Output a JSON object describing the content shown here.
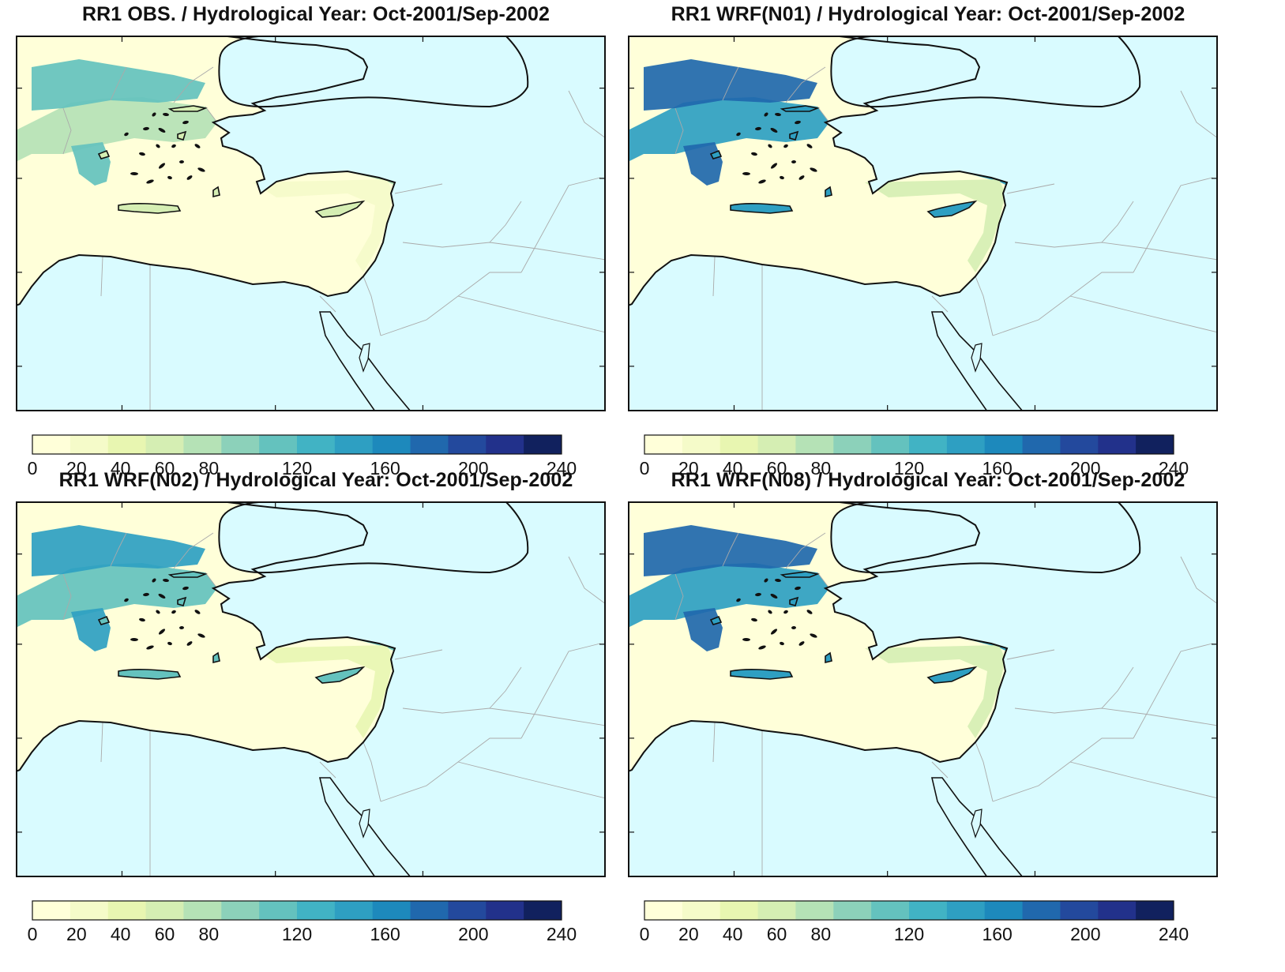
{
  "colorbar": {
    "colors": [
      "#ffffd9",
      "#f5fbc9",
      "#e8f6b1",
      "#d5eeb3",
      "#b5e2b6",
      "#8cd1ba",
      "#64c2be",
      "#41b3c4",
      "#2e9fc2",
      "#1d89bc",
      "#2068ad",
      "#23499d",
      "#22318b",
      "#11215e"
    ],
    "labels": [
      "0",
      "20",
      "40",
      "60",
      "80",
      "120",
      "160",
      "200",
      "240"
    ],
    "label_values": [
      0,
      20,
      40,
      60,
      80,
      120,
      160,
      200,
      240
    ],
    "max": 240
  },
  "panels": [
    {
      "id": "obs",
      "title": "RR1 OBS. / Hydrological Year: Oct-2001/Sep-2002",
      "intensity": "low"
    },
    {
      "id": "n01",
      "title": "RR1 WRF(N01) / Hydrological Year: Oct-2001/Sep-2002",
      "intensity": "high"
    },
    {
      "id": "n02",
      "title": "RR1 WRF(N02) / Hydrological Year: Oct-2001/Sep-2002",
      "intensity": "mid"
    },
    {
      "id": "n08",
      "title": "RR1 WRF(N08) / Hydrological Year: Oct-2001/Sep-2002",
      "intensity": "high"
    }
  ],
  "colors": {
    "sea": "#d9fbff",
    "land_base": "#ffffd9",
    "coast": "#111111",
    "border": "#aaaaaa"
  }
}
